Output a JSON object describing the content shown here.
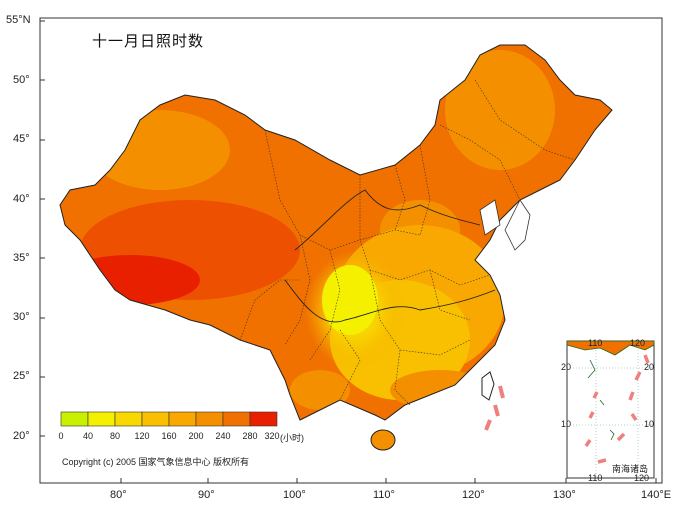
{
  "title": "十一月日照时数",
  "axes": {
    "lat_labels": [
      "55°N",
      "50°",
      "45°",
      "40°",
      "35°",
      "30°",
      "25°",
      "20°"
    ],
    "lon_labels": [
      "80°",
      "90°",
      "100°",
      "110°",
      "120°",
      "130°",
      "140°E"
    ]
  },
  "legend": {
    "colors": [
      "#c8f000",
      "#f4f000",
      "#f8d800",
      "#f8c000",
      "#f8a800",
      "#f49000",
      "#f07000",
      "#ec5000",
      "#e82000"
    ],
    "values": [
      "0",
      "40",
      "80",
      "120",
      "160",
      "200",
      "240",
      "280",
      "320"
    ],
    "unit": "(小时)"
  },
  "copyright": "Copyright (c) 2005 国家气象信息中心 版权所有",
  "inset": {
    "caption": "南海诸岛",
    "top_labels": [
      "110",
      "120"
    ],
    "bottom_labels": [
      "110",
      "120"
    ],
    "left_labels": [
      "20",
      "10"
    ],
    "right_labels": [
      "20",
      "10"
    ]
  }
}
